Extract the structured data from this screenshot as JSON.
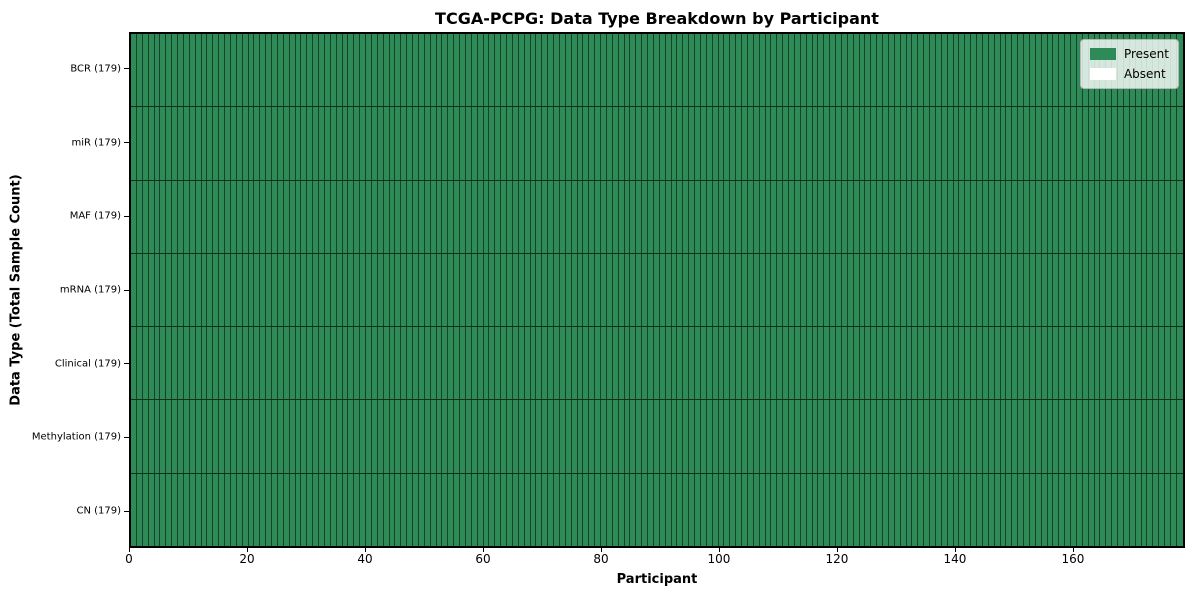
{
  "title": "TCGA-PCPG: Data Type Breakdown by Participant",
  "axes": {
    "x_label": "Participant",
    "y_label": "Data Type (Total Sample Count)",
    "x_ticks": [
      0,
      20,
      40,
      60,
      80,
      100,
      120,
      140,
      160
    ]
  },
  "legend": {
    "items": [
      {
        "label": "Present",
        "color": "#2e8b57"
      },
      {
        "label": "Absent",
        "color": "#ffffff"
      }
    ]
  },
  "chart_data": {
    "type": "heatmap",
    "title": "TCGA-PCPG: Data Type Breakdown by Participant",
    "xlabel": "Participant",
    "ylabel": "Data Type (Total Sample Count)",
    "participants": 179,
    "x_ticks": [
      0,
      20,
      40,
      60,
      80,
      100,
      120,
      140,
      160
    ],
    "xlim": [
      0,
      179
    ],
    "present_color": "#2e8b57",
    "absent_color": "#ffffff",
    "cell_edge_color": "rgba(0,0,0,0.52)",
    "legend_entries": [
      "Present",
      "Absent"
    ],
    "rows": [
      {
        "label": "BCR (179)",
        "data_type": "BCR",
        "total_samples": 179,
        "present": 179,
        "absent": 0
      },
      {
        "label": "miR (179)",
        "data_type": "miR",
        "total_samples": 179,
        "present": 179,
        "absent": 0
      },
      {
        "label": "MAF (179)",
        "data_type": "MAF",
        "total_samples": 179,
        "present": 179,
        "absent": 0
      },
      {
        "label": "mRNA (179)",
        "data_type": "mRNA",
        "total_samples": 179,
        "present": 179,
        "absent": 0
      },
      {
        "label": "Clinical (179)",
        "data_type": "Clinical",
        "total_samples": 179,
        "present": 179,
        "absent": 0
      },
      {
        "label": "Methylation (179)",
        "data_type": "Methylation",
        "total_samples": 179,
        "present": 179,
        "absent": 0
      },
      {
        "label": "CN (179)",
        "data_type": "CN",
        "total_samples": 179,
        "present": 179,
        "absent": 0
      }
    ]
  }
}
